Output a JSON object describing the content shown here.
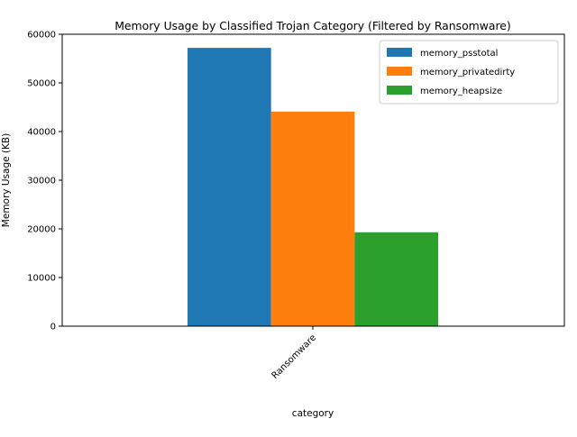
{
  "chart_data": {
    "type": "bar",
    "title": "Memory Usage by Classified Trojan Category (Filtered by Ransomware)",
    "xlabel": "category",
    "ylabel": "Memory Usage (KB)",
    "categories": [
      "Ransomware"
    ],
    "series": [
      {
        "name": "memory_psstotal",
        "color": "#1f77b4",
        "values": [
          57200
        ]
      },
      {
        "name": "memory_privatedirty",
        "color": "#ff7f0e",
        "values": [
          44100
        ]
      },
      {
        "name": "memory_heapsize",
        "color": "#2ca02c",
        "values": [
          19300
        ]
      }
    ],
    "ylim": [
      0,
      60000
    ],
    "yticks": [
      0,
      10000,
      20000,
      30000,
      40000,
      50000,
      60000
    ],
    "ytick_labels": [
      "0",
      "10000",
      "20000",
      "30000",
      "40000",
      "50000",
      "60000"
    ],
    "grid": false,
    "legend": "top-right"
  }
}
